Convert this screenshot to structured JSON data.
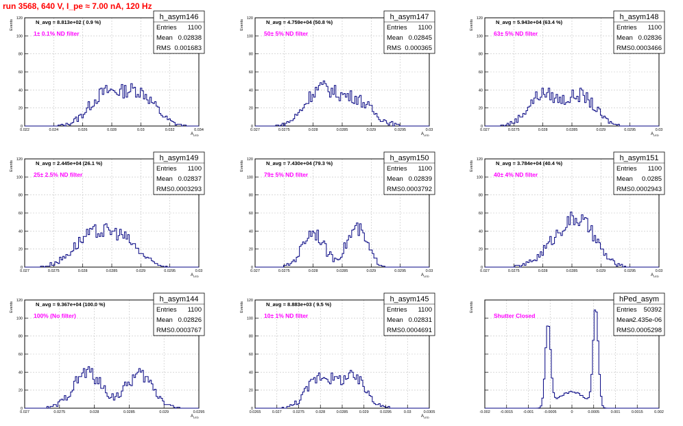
{
  "header": {
    "run_title": "run 3568,   640 V, I_pe ≈ 7.00 nA, 120 Hz"
  },
  "colors": {
    "hist": "#000080",
    "note": "#ff00ff",
    "title": "#ff0000",
    "grid": "#c0c0c0"
  },
  "chart_data": [
    {
      "type": "bar",
      "name": "h_asym146",
      "note": "1± 0.1% ND filter",
      "navg": "N_avg = 8.813e+02 ( 0.9 %)",
      "stats": {
        "entries_label": "Entries",
        "entries": "1100",
        "mean_label": "Mean",
        "mean": "0.02838",
        "rms_label": "RMS",
        "rms": "0.001683"
      },
      "ylabel": "Events",
      "xlabel": "A_{LED}",
      "xlim": [
        0.022,
        0.034
      ],
      "ylim": [
        0,
        120
      ],
      "xticks": [
        "0.022",
        "0.024",
        "0.026",
        "0.028",
        "0.03",
        "0.032",
        "0.034"
      ],
      "yticks": [
        "0",
        "20",
        "40",
        "60",
        "80",
        "100",
        "120"
      ],
      "peaks": [
        [
          0.0275,
          34,
          0.0011
        ],
        [
          0.0299,
          36,
          0.0011
        ]
      ]
    },
    {
      "type": "bar",
      "name": "h_asym147",
      "note": "50± 5% ND filter",
      "navg": "N_avg = 4.759e+04 (50.8 %)",
      "stats": {
        "entries_label": "Entries",
        "entries": "1100",
        "mean_label": "Mean",
        "mean": "0.02845",
        "rms_label": "RMS",
        "rms": "0.000365"
      },
      "ylabel": "Events",
      "xlabel": "A_{LED}",
      "xlim": [
        0.027,
        0.03
      ],
      "ylim": [
        0,
        120
      ],
      "xticks": [
        "0.027",
        "0.0275",
        "0.028",
        "0.0285",
        "0.029",
        "0.0295",
        "0.03"
      ],
      "yticks": [
        "0",
        "20",
        "40",
        "60",
        "80",
        "100",
        "120"
      ],
      "peaks": [
        [
          0.0281,
          38,
          0.00025
        ],
        [
          0.0287,
          30,
          0.0003
        ]
      ]
    },
    {
      "type": "bar",
      "name": "h_asym148",
      "note": "63± 5% ND filter",
      "navg": "N_avg = 5.943e+04 (63.4 %)",
      "stats": {
        "entries_label": "Entries",
        "entries": "1100",
        "mean_label": "Mean",
        "mean": "0.02836",
        "rms_label": "RMS",
        "rms": "0.0003466"
      },
      "ylabel": "Events",
      "xlabel": "A_{LED}",
      "xlim": [
        0.027,
        0.03
      ],
      "ylim": [
        0,
        120
      ],
      "xticks": [
        "0.027",
        "0.0275",
        "0.028",
        "0.0285",
        "0.029",
        "0.0295",
        "0.03"
      ],
      "yticks": [
        "0",
        "20",
        "40",
        "60",
        "80",
        "100",
        "120"
      ],
      "peaks": [
        [
          0.028,
          35,
          0.00025
        ],
        [
          0.02865,
          33,
          0.00025
        ]
      ]
    },
    {
      "type": "bar",
      "name": "h_asym149",
      "note": "25± 2.5% ND filter",
      "navg": "N_avg = 2.445e+04 (26.1 %)",
      "stats": {
        "entries_label": "Entries",
        "entries": "1100",
        "mean_label": "Mean",
        "mean": "0.02837",
        "rms_label": "RMS",
        "rms": "0.0003293"
      },
      "ylabel": "Events",
      "xlabel": "A_{LED}",
      "xlim": [
        0.027,
        0.03
      ],
      "ylim": [
        0,
        120
      ],
      "xticks": [
        "0.027",
        "0.0275",
        "0.028",
        "0.0285",
        "0.029",
        "0.0295",
        "0.03"
      ],
      "yticks": [
        "0",
        "20",
        "40",
        "60",
        "80",
        "100",
        "120"
      ],
      "peaks": [
        [
          0.0281,
          30,
          0.0003
        ],
        [
          0.02865,
          31,
          0.0003
        ]
      ]
    },
    {
      "type": "bar",
      "name": "h_asym150",
      "note": "79± 5% ND filter",
      "navg": "N_avg = 7.430e+04 (79.3 %)",
      "stats": {
        "entries_label": "Entries",
        "entries": "1100",
        "mean_label": "Mean",
        "mean": "0.02839",
        "rms_label": "RMS",
        "rms": "0.0003792"
      },
      "ylabel": "Events",
      "xlabel": "A_{LED}",
      "xlim": [
        0.027,
        0.03
      ],
      "ylim": [
        0,
        120
      ],
      "xticks": [
        "0.027",
        "0.0275",
        "0.028",
        "0.0285",
        "0.029",
        "0.0295",
        "0.03"
      ],
      "yticks": [
        "0",
        "20",
        "40",
        "60",
        "80",
        "100",
        "120"
      ],
      "peaks": [
        [
          0.028,
          40,
          0.00018
        ],
        [
          0.02875,
          42,
          0.00018
        ]
      ]
    },
    {
      "type": "bar",
      "name": "h_asym151",
      "note": "40± 4% ND filter",
      "navg": "N_avg = 3.784e+04 (40.4 %)",
      "stats": {
        "entries_label": "Entries",
        "entries": "1100",
        "mean_label": "Mean",
        "mean": "0.0285",
        "rms_label": "RMS",
        "rms": "0.0002943"
      },
      "ylabel": "Events",
      "xlabel": "A_{LED}",
      "xlim": [
        0.027,
        0.03
      ],
      "ylim": [
        0,
        120
      ],
      "xticks": [
        "0.027",
        "0.0275",
        "0.028",
        "0.0285",
        "0.029",
        "0.0295",
        "0.03"
      ],
      "yticks": [
        "0",
        "20",
        "40",
        "60",
        "80",
        "100",
        "120"
      ],
      "peaks": [
        [
          0.02835,
          34,
          0.0003
        ],
        [
          0.02872,
          33,
          0.00025
        ]
      ]
    },
    {
      "type": "bar",
      "name": "h_asym144",
      "note": "100% (No filter)",
      "navg": "N_avg = 9.367e+04 (100.0 %)",
      "stats": {
        "entries_label": "Entries",
        "entries": "1100",
        "mean_label": "Mean",
        "mean": "0.02826",
        "rms_label": "RMS",
        "rms": "0.0003767"
      },
      "ylabel": "Events",
      "xlabel": "A_{LED}",
      "xlim": [
        0.027,
        0.0295
      ],
      "ylim": [
        0,
        120
      ],
      "xticks": [
        "0.027",
        "0.0275",
        "0.028",
        "0.0285",
        "0.029",
        "0.0295"
      ],
      "yticks": [
        "0",
        "20",
        "40",
        "60",
        "80",
        "100",
        "120"
      ],
      "peaks": [
        [
          0.0279,
          40,
          0.0002
        ],
        [
          0.02865,
          37,
          0.0002
        ]
      ]
    },
    {
      "type": "bar",
      "name": "h_asym145",
      "note": "10± 1% ND filter",
      "navg": "N_avg = 8.883e+03 ( 9.5 %)",
      "stats": {
        "entries_label": "Entries",
        "entries": "1100",
        "mean_label": "Mean",
        "mean": "0.02831",
        "rms_label": "RMS",
        "rms": "0.0004691"
      },
      "ylabel": "Events",
      "xlabel": "A_{LED}",
      "xlim": [
        0.0265,
        0.0305
      ],
      "ylim": [
        0,
        120
      ],
      "xticks": [
        "0.0265",
        "0.027",
        "0.0275",
        "0.028",
        "0.0285",
        "0.029",
        "0.0295",
        "0.03",
        "0.0305"
      ],
      "yticks": [
        "0",
        "20",
        "40",
        "60",
        "80",
        "100",
        "120"
      ],
      "peaks": [
        [
          0.028,
          35,
          0.0003
        ],
        [
          0.02875,
          33,
          0.0003
        ]
      ]
    },
    {
      "type": "bar",
      "name": "hPed_asym",
      "note": "Shutter Closed",
      "navg": "",
      "stats": {
        "entries_label": "Entries",
        "entries": "50392",
        "mean_label": "Mean",
        "mean": "-2.435e-06",
        "rms_label": "RMS",
        "rms": "0.0005298"
      },
      "ylabel": "Events",
      "xlabel": "",
      "xlim": [
        -0.002,
        0.002
      ],
      "ylim": [
        0,
        3000
      ],
      "xticks": [
        "-0.002",
        "-0.0015",
        "-0.001",
        "-0.0005",
        "0",
        "0.0005",
        "0.001",
        "0.0015",
        "0.002"
      ],
      "yticks": [],
      "peaks": [
        [
          -0.00055,
          2300,
          6e-05
        ],
        [
          0.00055,
          2700,
          6e-05
        ]
      ],
      "bridge": 450
    }
  ]
}
